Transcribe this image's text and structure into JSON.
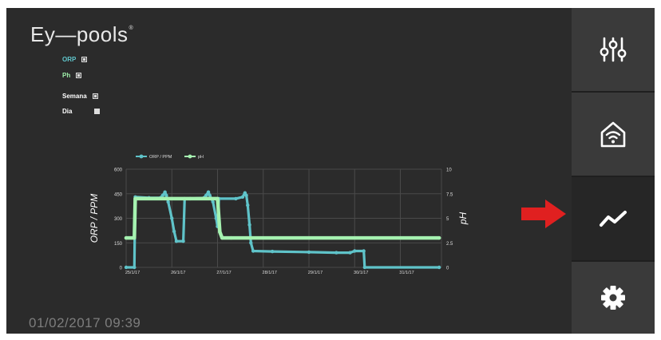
{
  "app": {
    "logo_text": "Ey—pools",
    "logo_mark": "®"
  },
  "options": [
    {
      "label": "ORP",
      "checked": true,
      "color": "#60c6cc"
    },
    {
      "label": "Ph",
      "checked": true,
      "color": "#9ff0a9"
    },
    {
      "label": "Semana",
      "checked": true,
      "color": "#ffffff"
    },
    {
      "label": "Dia",
      "checked": false,
      "color": "#ffffff"
    }
  ],
  "sidebar": {
    "items": [
      {
        "name": "settings-sliders",
        "icon": "sliders-icon",
        "active": false
      },
      {
        "name": "home-wifi",
        "icon": "home-wifi-icon",
        "active": false
      },
      {
        "name": "charts",
        "icon": "trend-icon",
        "active": true
      },
      {
        "name": "config",
        "icon": "gear-icon",
        "active": false
      }
    ]
  },
  "datetime": "01/02/2017 09:39",
  "colors": {
    "orp": "#5fc3c9",
    "ph": "#a5f2b0",
    "arrow": "#e02020",
    "active_tab": "#262626",
    "inactive_tab": "#3a3a3a"
  },
  "chart_data": {
    "type": "line",
    "legend": [
      "ORP / PPM",
      "pH"
    ],
    "legend_position": "top-left",
    "y_left": {
      "label": "ORP / PPM",
      "ticks": [
        0,
        150,
        300,
        450,
        600
      ],
      "range": [
        0,
        600
      ]
    },
    "y_right": {
      "label": "pH",
      "ticks": [
        0,
        2.5,
        5,
        7.5,
        10
      ],
      "range": [
        0,
        10
      ]
    },
    "x_labels": [
      "25/1/17",
      "26/1/17",
      "27/1/17",
      "28/1/17",
      "29/1/17",
      "30/1/17",
      "31/1/17"
    ],
    "x_range": [
      0,
      6.9
    ],
    "grid": true,
    "series": [
      {
        "name": "ORP / PPM",
        "axis": "left",
        "color": "#5fc3c9",
        "points": [
          [
            0.0,
            0
          ],
          [
            0.18,
            0
          ],
          [
            0.2,
            430
          ],
          [
            0.5,
            425
          ],
          [
            0.75,
            425
          ],
          [
            0.8,
            440
          ],
          [
            0.85,
            460
          ],
          [
            0.88,
            440
          ],
          [
            0.92,
            400
          ],
          [
            1.0,
            300
          ],
          [
            1.05,
            220
          ],
          [
            1.1,
            160
          ],
          [
            1.25,
            160
          ],
          [
            1.28,
            420
          ],
          [
            1.4,
            420
          ],
          [
            1.7,
            425
          ],
          [
            1.75,
            440
          ],
          [
            1.8,
            460
          ],
          [
            1.83,
            440
          ],
          [
            1.9,
            400
          ],
          [
            1.97,
            300
          ],
          [
            2.0,
            250
          ],
          [
            2.03,
            420
          ],
          [
            2.4,
            420
          ],
          [
            2.55,
            430
          ],
          [
            2.6,
            455
          ],
          [
            2.63,
            440
          ],
          [
            2.66,
            380
          ],
          [
            2.7,
            260
          ],
          [
            2.73,
            150
          ],
          [
            2.78,
            100
          ],
          [
            3.2,
            97
          ],
          [
            4.0,
            93
          ],
          [
            4.6,
            90
          ],
          [
            4.9,
            90
          ],
          [
            5.0,
            100
          ],
          [
            5.2,
            100
          ],
          [
            5.22,
            0
          ],
          [
            6.85,
            0
          ]
        ]
      },
      {
        "name": "pH",
        "axis": "right",
        "color": "#a5f2b0",
        "points": [
          [
            0.0,
            3.0
          ],
          [
            0.18,
            3.0
          ],
          [
            0.2,
            7.0
          ],
          [
            2.0,
            7.0
          ],
          [
            2.05,
            3.6
          ],
          [
            2.1,
            3.0
          ],
          [
            2.3,
            3.0
          ],
          [
            6.85,
            3.0
          ]
        ]
      }
    ]
  }
}
